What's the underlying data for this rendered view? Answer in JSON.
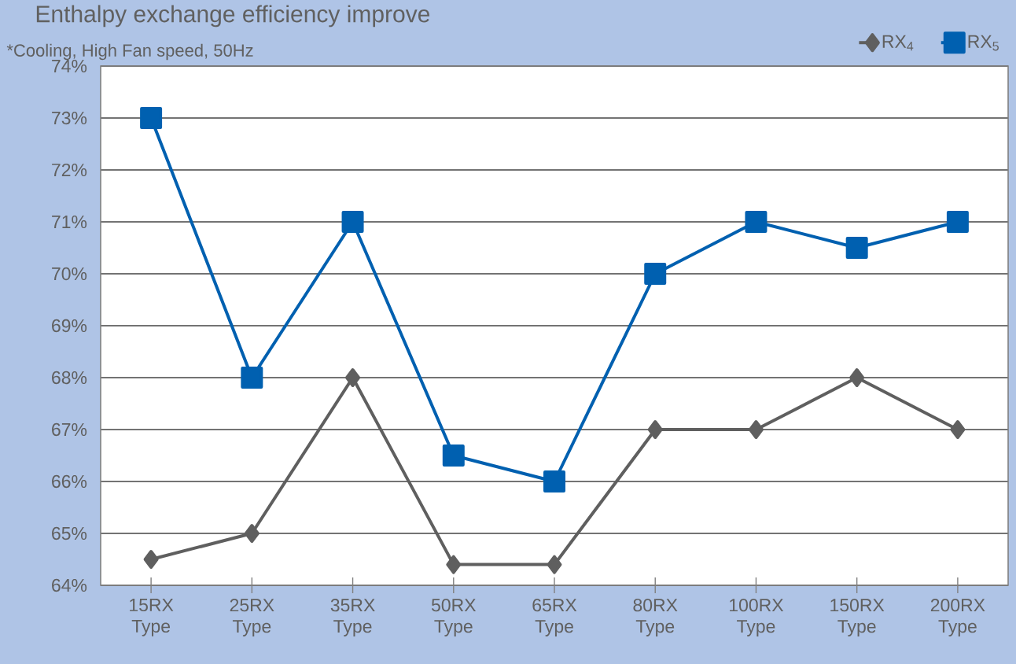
{
  "chart_data": {
    "type": "line",
    "title": "Enthalpy exchange efficiency improve",
    "subtitle": "*Cooling, High Fan speed, 50Hz",
    "categories": [
      "15RX Type",
      "25RX Type",
      "35RX Type",
      "50RX Type",
      "65RX Type",
      "80RX Type",
      "100RX Type",
      "150RX Type",
      "200RX Type"
    ],
    "series": [
      {
        "name": "RX$_{4}$",
        "color": "#5f5f5f",
        "marker": "diamond",
        "values": [
          64.5,
          65,
          68,
          64.4,
          64.4,
          67,
          67,
          68,
          67
        ]
      },
      {
        "name": "RX$_{5}$",
        "color": "#0060b0",
        "marker": "square",
        "values": [
          73,
          68,
          71,
          66.5,
          66,
          70,
          71,
          70.5,
          71
        ]
      }
    ],
    "ylim": [
      64,
      74
    ],
    "yticks": [
      {
        "value": 64,
        "label": "64%"
      },
      {
        "value": 65,
        "label": "65%"
      },
      {
        "value": 66,
        "label": "66%"
      },
      {
        "value": 67,
        "label": "67%"
      },
      {
        "value": 68,
        "label": "68%"
      },
      {
        "value": 69,
        "label": "69%"
      },
      {
        "value": 70,
        "label": "70%"
      },
      {
        "value": 71,
        "label": "71%"
      },
      {
        "value": 72,
        "label": "72%"
      },
      {
        "value": 73,
        "label": "73%"
      },
      {
        "value": 74,
        "label": "74%"
      }
    ],
    "grid": "y",
    "legend": "top right",
    "line_style": "solid"
  }
}
